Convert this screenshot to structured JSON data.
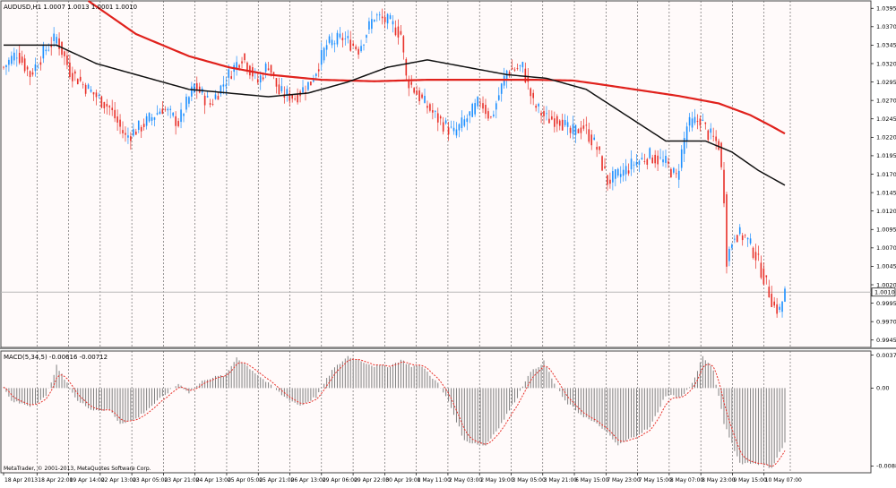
{
  "chart_data": [
    {
      "type": "candlestick",
      "title": "AUDUSD,H1  1.0007 1.0013 1.0001 1.0010",
      "symbol": "AUDUSD,H1",
      "ohlc": [
        1.0007,
        1.0013,
        1.0001,
        1.001
      ],
      "current_price": 1.001,
      "current_price_label": "1.0010",
      "ylim": [
        0.9935,
        1.0405
      ],
      "ytick_labels": [
        "1.0395",
        "1.0370",
        "1.0345",
        "1.0320",
        "1.0295",
        "1.0270",
        "1.0245",
        "1.0220",
        "1.0195",
        "1.0170",
        "1.0145",
        "1.0120",
        "1.0095",
        "1.0070",
        "1.0045",
        "1.0020",
        "0.9995",
        "0.9970",
        "0.9945"
      ],
      "x_labels": [
        "18 Apr 2013",
        "18 Apr 22:00",
        "19 Apr 14:00",
        "22 Apr 13:00",
        "23 Apr 05:00",
        "23 Apr 21:00",
        "24 Apr 13:00",
        "25 Apr 05:00",
        "25 Apr 21:00",
        "26 Apr 13:00",
        "29 Apr 06:00",
        "29 Apr 22:00",
        "30 Apr 19:00",
        "1 May 11:00",
        "2 May 03:00",
        "2 May 19:00",
        "3 May 05:00",
        "3 May 21:00",
        "6 May 15:00",
        "7 May 23:00",
        "7 May 15:00",
        "8 May 07:00",
        "8 May 23:00",
        "9 May 15:00",
        "10 May 07:00"
      ],
      "bull_color": "#1e90ff",
      "bear_color": "#e8312a",
      "close_path": [
        [
          0,
          1.0315
        ],
        [
          5,
          1.0335
        ],
        [
          10,
          1.0305
        ],
        [
          16,
          1.034
        ],
        [
          20,
          1.0355
        ],
        [
          25,
          1.031
        ],
        [
          32,
          1.0285
        ],
        [
          40,
          1.026
        ],
        [
          46,
          1.022
        ],
        [
          52,
          1.0235
        ],
        [
          60,
          1.026
        ],
        [
          66,
          1.024
        ],
        [
          72,
          1.029
        ],
        [
          78,
          1.0265
        ],
        [
          86,
          1.031
        ],
        [
          90,
          1.033
        ],
        [
          96,
          1.0295
        ],
        [
          100,
          1.032
        ],
        [
          104,
          1.028
        ],
        [
          110,
          1.0275
        ],
        [
          116,
          1.0295
        ],
        [
          122,
          1.0345
        ],
        [
          128,
          1.0355
        ],
        [
          134,
          1.034
        ],
        [
          140,
          1.0385
        ],
        [
          146,
          1.0375
        ],
        [
          150,
          1.036
        ],
        [
          152,
          1.03
        ],
        [
          158,
          1.027
        ],
        [
          164,
          1.0245
        ],
        [
          170,
          1.0225
        ],
        [
          176,
          1.025
        ],
        [
          180,
          1.027
        ],
        [
          184,
          1.0245
        ],
        [
          190,
          1.031
        ],
        [
          196,
          1.0315
        ],
        [
          200,
          1.0265
        ],
        [
          205,
          1.0245
        ],
        [
          210,
          1.0245
        ],
        [
          214,
          1.0225
        ],
        [
          219,
          1.0235
        ],
        [
          224,
          1.0205
        ],
        [
          228,
          1.016
        ],
        [
          233,
          1.017
        ],
        [
          238,
          1.0185
        ],
        [
          244,
          1.0195
        ],
        [
          250,
          1.0185
        ],
        [
          254,
          1.0165
        ],
        [
          258,
          1.0235
        ],
        [
          263,
          1.0245
        ],
        [
          266,
          1.0225
        ],
        [
          270,
          1.021
        ],
        [
          272,
          1.014
        ],
        [
          273,
          1.0055
        ],
        [
          276,
          1.009
        ],
        [
          280,
          1.0085
        ],
        [
          284,
          1.006
        ],
        [
          288,
          1.002
        ],
        [
          291,
          0.999
        ],
        [
          293,
          0.9985
        ],
        [
          295,
          1.001
        ]
      ],
      "series": [
        {
          "name": "",
          "color": "#e0211c",
          "points": [
            [
              32,
              1.0405
            ],
            [
              50,
              1.036
            ],
            [
              70,
              1.033
            ],
            [
              85,
              1.0315
            ],
            [
              100,
              1.0305
            ],
            [
              120,
              1.0298
            ],
            [
              140,
              1.0296
            ],
            [
              160,
              1.0298
            ],
            [
              180,
              1.0298
            ],
            [
              200,
              1.0298
            ],
            [
              215,
              1.0297
            ],
            [
              225,
              1.0292
            ],
            [
              240,
              1.0284
            ],
            [
              255,
              1.0276
            ],
            [
              270,
              1.0266
            ],
            [
              282,
              1.025
            ],
            [
              290,
              1.0235
            ],
            [
              295,
              1.0225
            ]
          ]
        },
        {
          "name": "",
          "color": "#111111",
          "points": [
            [
              0,
              1.0345
            ],
            [
              20,
              1.0345
            ],
            [
              35,
              1.032
            ],
            [
              50,
              1.0305
            ],
            [
              70,
              1.0285
            ],
            [
              85,
              1.028
            ],
            [
              100,
              1.0275
            ],
            [
              115,
              1.028
            ],
            [
              130,
              1.0295
            ],
            [
              145,
              1.0315
            ],
            [
              160,
              1.0325
            ],
            [
              175,
              1.0315
            ],
            [
              190,
              1.0305
            ],
            [
              205,
              1.03
            ],
            [
              220,
              1.0285
            ],
            [
              235,
              1.025
            ],
            [
              250,
              1.0215
            ],
            [
              265,
              1.0215
            ],
            [
              275,
              1.02
            ],
            [
              285,
              1.0175
            ],
            [
              295,
              1.0155
            ]
          ]
        }
      ],
      "bar_count": 296
    },
    {
      "type": "histogram",
      "title": "MACD(5,34,5) -0.00616 -0.00712",
      "ylim": [
        -0.0096,
        0.0042
      ],
      "ytick_labels": [
        "0.00374",
        "0.00",
        "-0.00883"
      ],
      "bar_color": "#808080",
      "signal_color": "#e8312a",
      "values_path": [
        [
          0,
          0
        ],
        [
          3,
          -0.0015
        ],
        [
          10,
          -0.002
        ],
        [
          16,
          -0.001
        ],
        [
          20,
          0.0025
        ],
        [
          24,
          0.0005
        ],
        [
          28,
          -0.0015
        ],
        [
          34,
          -0.0025
        ],
        [
          40,
          -0.0025
        ],
        [
          44,
          -0.004
        ],
        [
          50,
          -0.0035
        ],
        [
          56,
          -0.002
        ],
        [
          62,
          -0.0005
        ],
        [
          66,
          0.0005
        ],
        [
          70,
          -0.0005
        ],
        [
          76,
          0.001
        ],
        [
          84,
          0.0015
        ],
        [
          88,
          0.0035
        ],
        [
          94,
          0.002
        ],
        [
          100,
          0.0005
        ],
        [
          106,
          -0.001
        ],
        [
          112,
          -0.002
        ],
        [
          118,
          -0.001
        ],
        [
          124,
          0.002
        ],
        [
          130,
          0.0036
        ],
        [
          134,
          0.0032
        ],
        [
          140,
          0.0025
        ],
        [
          146,
          0.0025
        ],
        [
          150,
          0.0032
        ],
        [
          154,
          0.0025
        ],
        [
          158,
          0.0025
        ],
        [
          164,
          0.0005
        ],
        [
          168,
          -0.0015
        ],
        [
          174,
          -0.006
        ],
        [
          182,
          -0.0065
        ],
        [
          188,
          -0.004
        ],
        [
          194,
          -0.001
        ],
        [
          198,
          0.0015
        ],
        [
          204,
          0.003
        ],
        [
          208,
          0.0005
        ],
        [
          212,
          -0.0015
        ],
        [
          218,
          -0.003
        ],
        [
          226,
          -0.0045
        ],
        [
          232,
          -0.0065
        ],
        [
          238,
          -0.0055
        ],
        [
          244,
          -0.0045
        ],
        [
          250,
          -0.0008
        ],
        [
          256,
          -0.001
        ],
        [
          260,
          0.0005
        ],
        [
          264,
          0.0036
        ],
        [
          268,
          0.002
        ],
        [
          272,
          -0.004
        ],
        [
          278,
          -0.0085
        ],
        [
          284,
          -0.0085
        ],
        [
          290,
          -0.009
        ],
        [
          295,
          -0.0062
        ]
      ],
      "bar_count": 296
    }
  ],
  "watermark": "MetaTrader, © 2001-2013, MetaQuotes Software Corp."
}
